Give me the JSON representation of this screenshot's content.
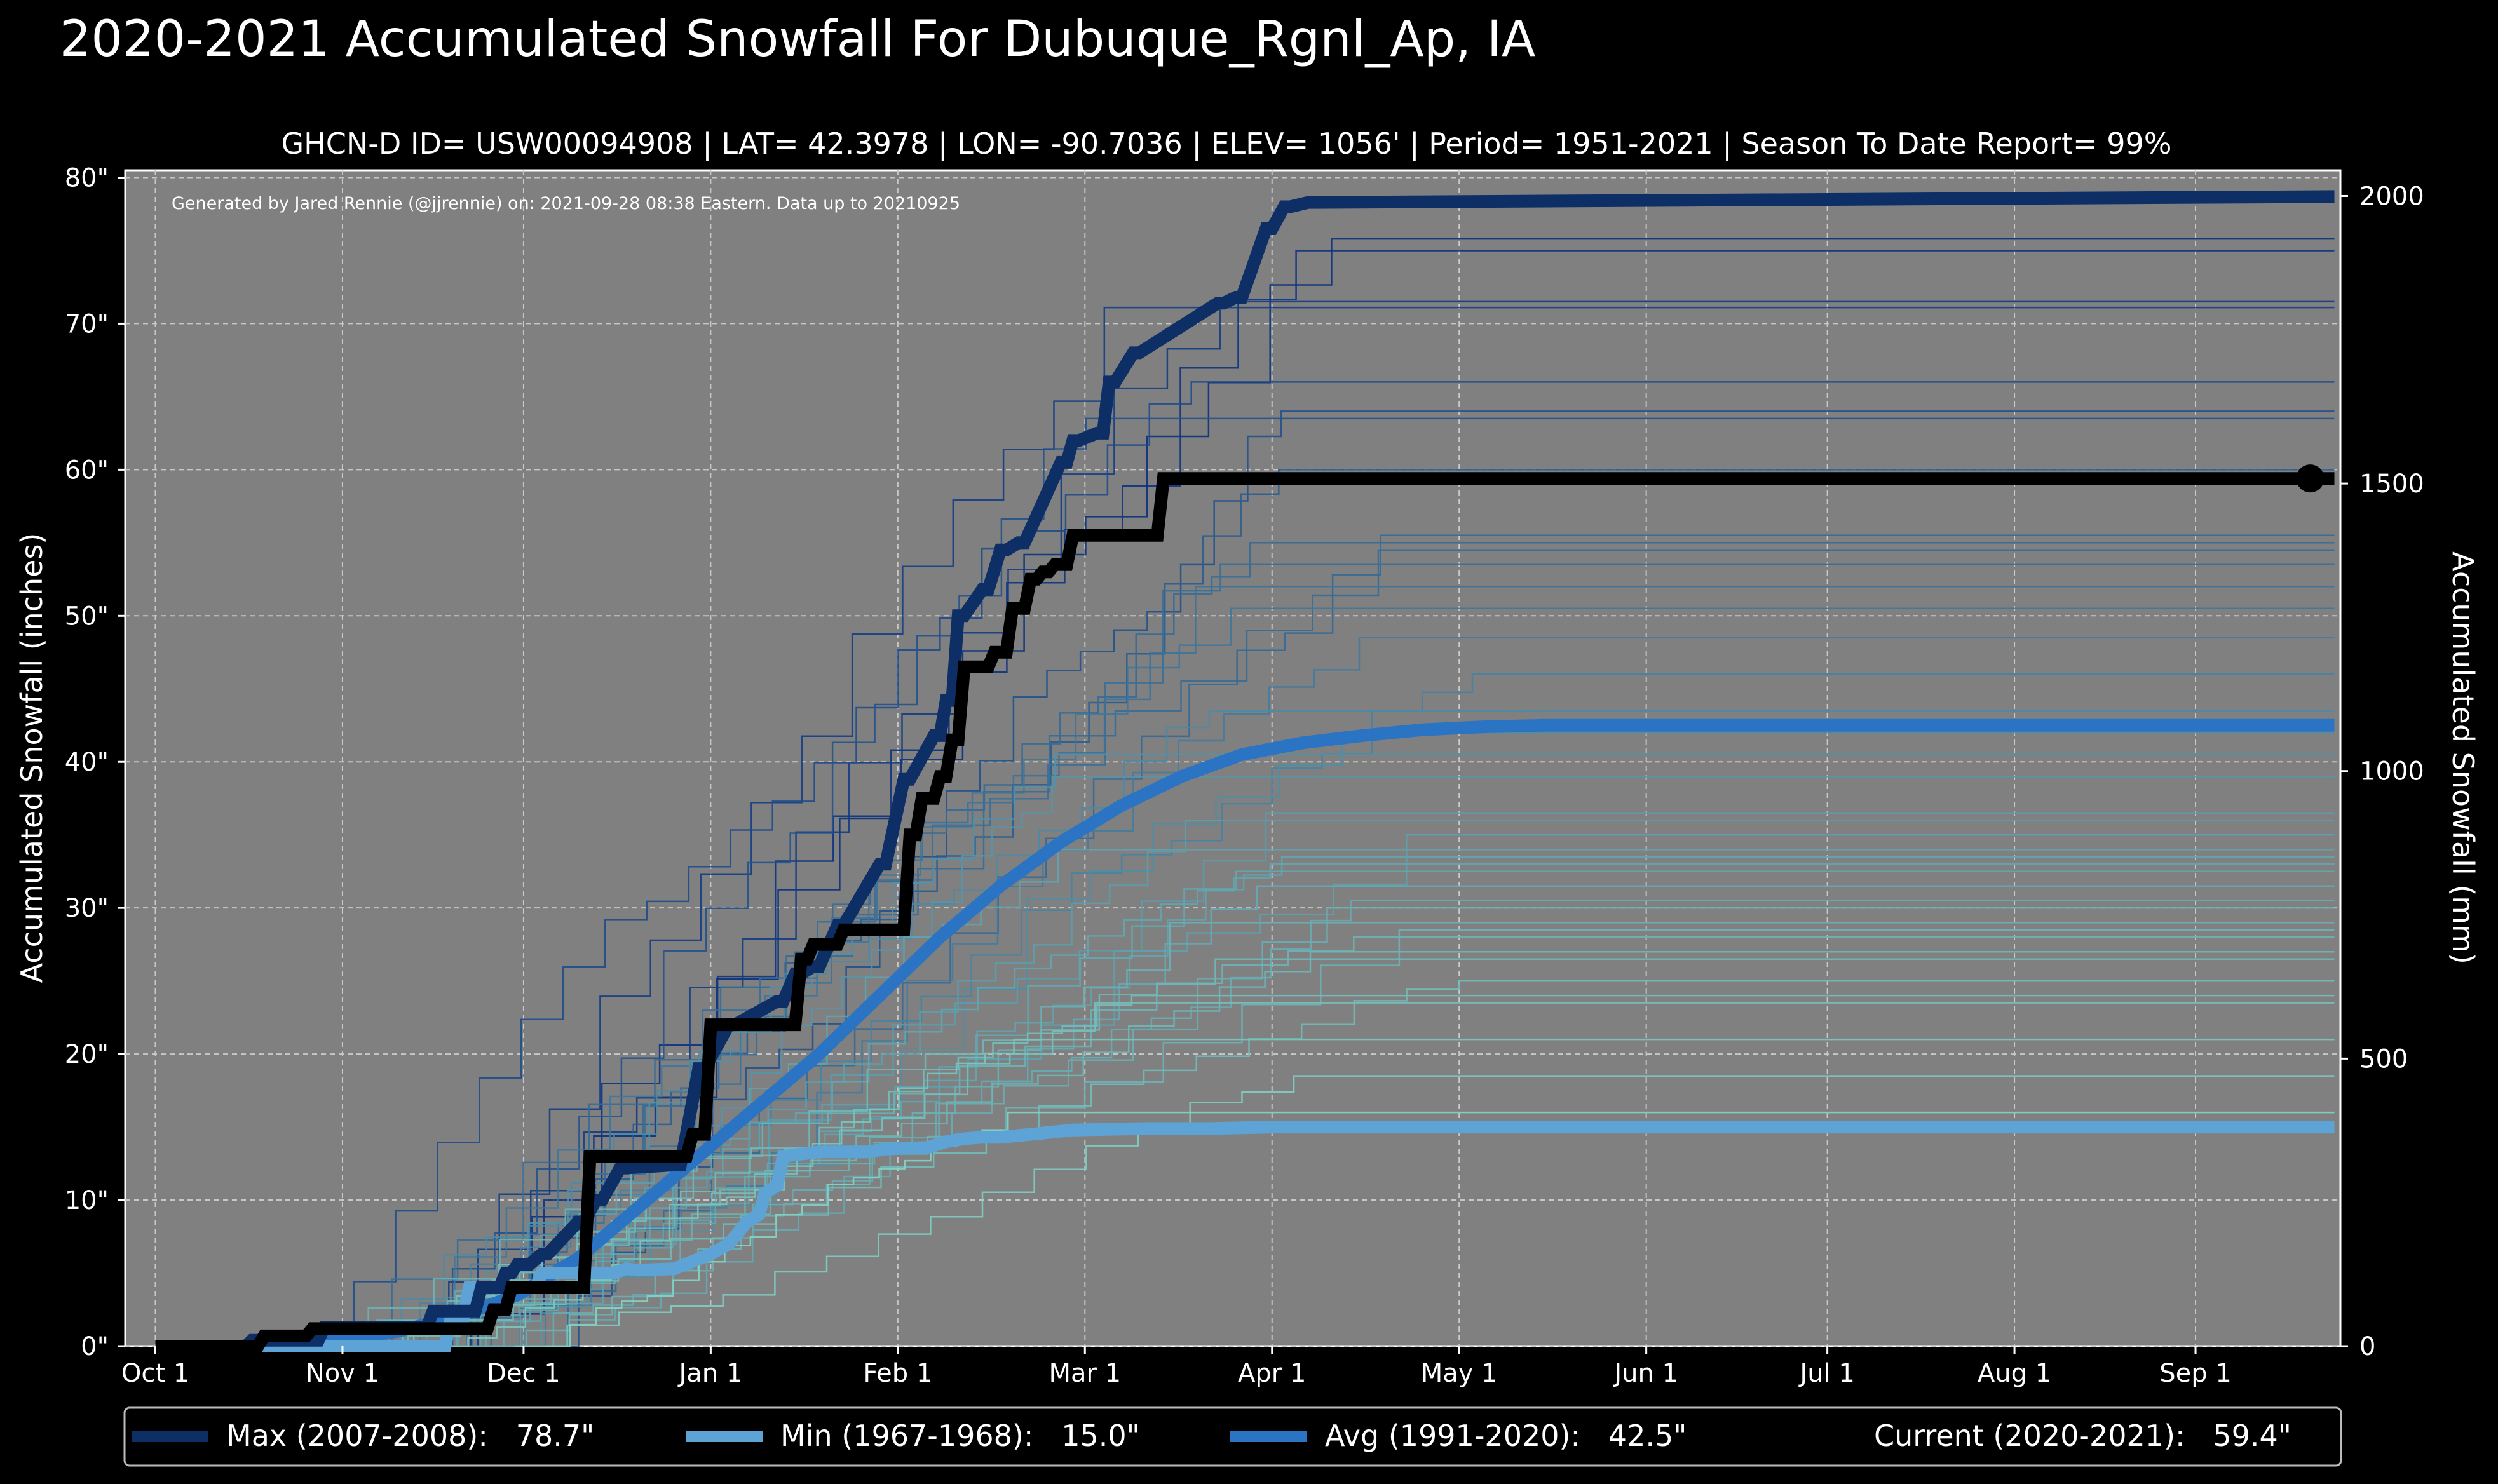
{
  "chart_data": {
    "type": "line",
    "title": "2020-2021 Accumulated Snowfall For Dubuque_Rgnl_Ap, IA",
    "subtitle": "GHCN-D ID= USW00094908 | LAT= 42.3978 | LON= -90.7036 | ELEV= 1056' | Period= 1951-2021 | Season To Date Report= 99%",
    "credit": "Generated by Jared Rennie (@jjrennie) on: 2021-09-28 08:38 Eastern. Data up to 20210925",
    "ylabel": "Accumulated Snowfall (inches)",
    "ylabel_right": "Accumulated Snowfall (mm)",
    "xlabel": "",
    "x_unit": "days since Oct 1",
    "xlim": [
      -5,
      362
    ],
    "ylim": [
      0,
      80.5
    ],
    "grid": true,
    "x_ticks": [
      {
        "day": 0,
        "label": "Oct 1"
      },
      {
        "day": 31,
        "label": "Nov 1"
      },
      {
        "day": 61,
        "label": "Dec 1"
      },
      {
        "day": 92,
        "label": "Jan 1"
      },
      {
        "day": 123,
        "label": "Feb 1"
      },
      {
        "day": 154,
        "label": "Mar 1"
      },
      {
        "day": 185,
        "label": "Apr 1"
      },
      {
        "day": 216,
        "label": "May 1"
      },
      {
        "day": 247,
        "label": "Jun 1"
      },
      {
        "day": 277,
        "label": "Jul 1"
      },
      {
        "day": 308,
        "label": "Aug 1"
      },
      {
        "day": 338,
        "label": "Sep 1"
      }
    ],
    "y_ticks_left": [
      {
        "value": 0,
        "label": "0\""
      },
      {
        "value": 10,
        "label": "10\""
      },
      {
        "value": 20,
        "label": "20\""
      },
      {
        "value": 30,
        "label": "30\""
      },
      {
        "value": 40,
        "label": "40\""
      },
      {
        "value": 50,
        "label": "50\""
      },
      {
        "value": 60,
        "label": "60\""
      },
      {
        "value": 70,
        "label": "70\""
      },
      {
        "value": 80,
        "label": "80\""
      }
    ],
    "y_ticks_right": [
      {
        "value": 0,
        "label": "0"
      },
      {
        "value": 500,
        "label": "500"
      },
      {
        "value": 1000,
        "label": "1000"
      },
      {
        "value": 1500,
        "label": "1500"
      },
      {
        "value": 2000,
        "label": "2000"
      }
    ],
    "background_season_totals": [
      75.8,
      75.0,
      71.5,
      71.1,
      66.0,
      64.0,
      63.5,
      60.0,
      55.5,
      55.0,
      54.5,
      53.5,
      52.0,
      50.5,
      48.5,
      46.0,
      43.5,
      42.0,
      40.5,
      39.0,
      36.5,
      36.0,
      35.0,
      34.0,
      33.5,
      33.0,
      32.5,
      31.5,
      30.5,
      30.0,
      29.0,
      28.5,
      28.0,
      27.0,
      26.5,
      25.0,
      24.0,
      23.5,
      21.0,
      18.5,
      16.0
    ],
    "series": [
      {
        "name": "Max (2007-2008)",
        "total": "78.7\"",
        "color": "#0d2f66",
        "width": 20,
        "x": [
          0,
          15,
          16,
          27,
          28,
          45,
          46,
          53,
          54,
          57,
          58,
          59,
          60,
          62,
          64,
          65,
          70,
          71,
          73,
          74,
          77,
          78,
          86,
          87,
          90,
          91,
          95,
          96,
          103,
          104,
          106,
          107,
          109,
          110,
          113,
          114,
          120,
          121,
          124,
          125,
          129,
          130,
          131,
          132,
          133,
          134,
          137,
          138,
          140,
          141,
          143,
          144,
          150,
          151,
          152,
          153,
          156,
          157,
          158,
          159,
          162,
          163,
          176,
          177,
          179,
          180,
          184,
          185,
          187,
          188,
          191,
          192,
          361
        ],
        "y": [
          0,
          0,
          0.4,
          0.4,
          1.3,
          1.3,
          2.4,
          2.4,
          4.0,
          4.0,
          5.0,
          5.0,
          5.6,
          5.6,
          6.3,
          6.3,
          8.5,
          8.5,
          10.0,
          10.0,
          12.2,
          12.2,
          12.4,
          12.4,
          19.0,
          19.0,
          22.0,
          22.0,
          23.6,
          23.6,
          25.5,
          25.5,
          26.0,
          26.0,
          28.8,
          28.8,
          33.0,
          33.0,
          38.8,
          38.8,
          41.8,
          41.8,
          44.2,
          44.2,
          50.0,
          50.0,
          51.8,
          51.8,
          54.5,
          54.5,
          55.0,
          55.0,
          60.5,
          60.5,
          62.0,
          62.0,
          62.5,
          62.5,
          66.0,
          66.0,
          68.0,
          68.0,
          71.4,
          71.4,
          71.8,
          71.8,
          76.5,
          76.5,
          78.0,
          78.0,
          78.3,
          78.3,
          78.7
        ]
      },
      {
        "name": "Min (1967-1968)",
        "total": "15.0\"",
        "color": "#5ea3d6",
        "width": 20,
        "x": [
          0,
          48,
          49,
          51,
          52,
          56,
          60,
          63,
          64,
          76,
          78,
          80,
          86,
          89,
          92,
          95,
          97,
          98,
          100,
          101,
          103,
          104,
          110,
          112,
          114,
          116,
          118,
          121,
          128,
          131,
          134,
          137,
          140,
          145,
          152,
          165,
          175,
          185,
          195,
          200,
          201,
          210,
          361
        ],
        "y": [
          0,
          0,
          2.0,
          2.0,
          4.0,
          4.0,
          4.0,
          4.0,
          5.0,
          5.0,
          5.3,
          5.2,
          5.3,
          5.8,
          6.3,
          7.0,
          8.0,
          8.5,
          9.0,
          10.5,
          11.0,
          13.0,
          13.3,
          13.3,
          13.3,
          13.3,
          13.3,
          13.5,
          13.6,
          14.0,
          14.2,
          14.3,
          14.3,
          14.5,
          14.8,
          14.9,
          14.9,
          15.0,
          15.0,
          15.0,
          15.0,
          15.0,
          15.0
        ]
      },
      {
        "name": "Avg (1991-2020)",
        "total": "42.5\"",
        "color": "#2b74c4",
        "width": 20,
        "x": [
          20,
          30,
          40,
          50,
          60,
          70,
          80,
          90,
          100,
          110,
          120,
          130,
          140,
          150,
          160,
          170,
          180,
          190,
          200,
          210,
          220,
          230,
          361
        ],
        "y": [
          0.1,
          0.4,
          1.0,
          2.0,
          3.5,
          6.0,
          9.5,
          13.0,
          16.5,
          20.0,
          24.0,
          28.0,
          31.5,
          34.5,
          37.0,
          39.0,
          40.5,
          41.3,
          41.8,
          42.2,
          42.4,
          42.5,
          42.5
        ]
      },
      {
        "name": "Current (2020-2021)",
        "total": "59.4\"",
        "color": "#000000",
        "width": 20,
        "x": [
          0,
          17,
          18,
          25,
          26,
          55,
          56,
          58,
          59,
          71,
          72,
          88,
          89,
          91,
          92,
          106,
          107,
          108,
          109,
          113,
          114,
          124,
          125,
          126,
          127,
          129,
          130,
          131,
          132,
          133,
          134,
          138,
          139,
          141,
          142,
          144,
          145,
          146,
          147,
          148,
          149,
          151,
          152,
          166,
          167,
          361
        ],
        "y": [
          0,
          0,
          0.7,
          0.7,
          1.2,
          1.2,
          2.5,
          2.5,
          4.0,
          4.0,
          13.0,
          13.0,
          14.5,
          14.5,
          22.0,
          22.0,
          26.5,
          26.5,
          27.5,
          27.5,
          28.5,
          28.5,
          35.0,
          35.0,
          37.5,
          37.5,
          39.0,
          39.0,
          41.5,
          41.5,
          46.5,
          46.5,
          47.5,
          47.5,
          50.5,
          50.5,
          52.5,
          52.5,
          53.0,
          53.0,
          53.5,
          53.5,
          55.5,
          55.5,
          59.4,
          59.4
        ]
      }
    ],
    "legend": [
      {
        "label": "Max (2007-2008):   78.7\"",
        "color": "#0d2f66"
      },
      {
        "label": "Min (1967-1968):   15.0\"",
        "color": "#5ea3d6"
      },
      {
        "label": "Avg (1991-2020):   42.5\"",
        "color": "#2b74c4"
      },
      {
        "label": "Current (2020-2021):   59.4\"",
        "color": "#000000"
      }
    ],
    "legend_position": "bottom"
  }
}
